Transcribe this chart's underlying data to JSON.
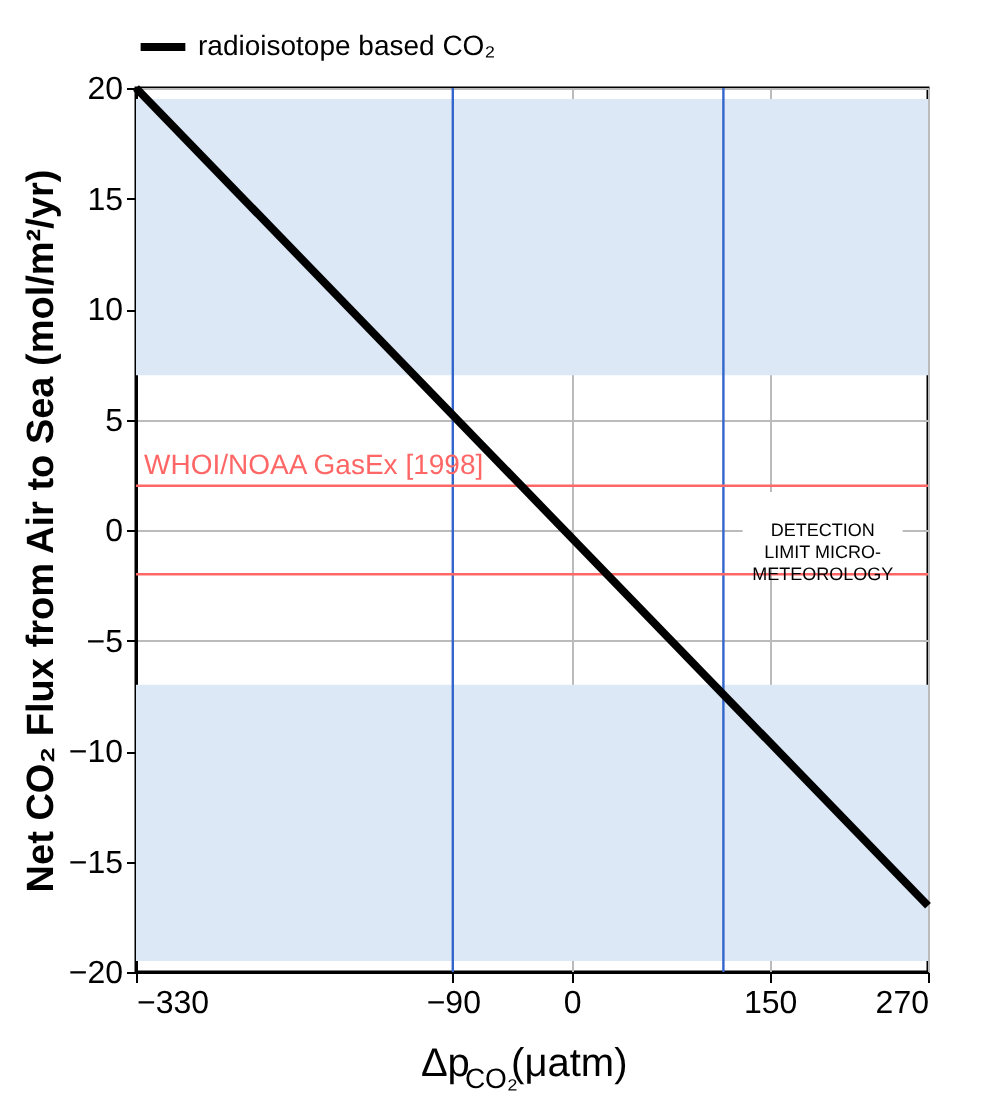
{
  "chart_data": {
    "type": "line",
    "xlabel": "Δp$_{CO₂}$(μatm)",
    "ylabel": "Net CO₂ Flux from Air to Sea (mol/m²/yr)",
    "series": [
      {
        "name": "radioisotope based CO₂",
        "color": "#000000",
        "x": [
          -330,
          270
        ],
        "values": [
          20,
          -17
        ]
      }
    ],
    "xlim": [
      -330,
      270
    ],
    "xticks": [
      -330,
      -90,
      0,
      150,
      270
    ],
    "ylim": [
      -20,
      20
    ],
    "yticks": [
      -20,
      -15,
      -10,
      -5,
      0,
      5,
      10,
      15,
      20
    ],
    "ref_lines": [
      {
        "axis": "x",
        "value": -90,
        "color": "#3366cc"
      },
      {
        "axis": "x",
        "value": 115,
        "color": "#3366cc"
      },
      {
        "axis": "y",
        "value": 2,
        "color": "#ff6666",
        "label": "WHOI/NOAA GasEx [1998]"
      },
      {
        "axis": "y",
        "value": -2,
        "color": "#ff6666"
      }
    ],
    "bands": [
      {
        "axis": "y",
        "from": 7,
        "to": 19.5,
        "color": "#dce8f5"
      },
      {
        "axis": "y",
        "from": -19.5,
        "to": -7,
        "color": "#dce8f5"
      }
    ],
    "annotations": [
      "DETECTION\nLIMIT MICRO-\nMETEOROLOGY"
    ],
    "grid": true,
    "legend": "top",
    "marker": "none",
    "line_style": "solid"
  }
}
